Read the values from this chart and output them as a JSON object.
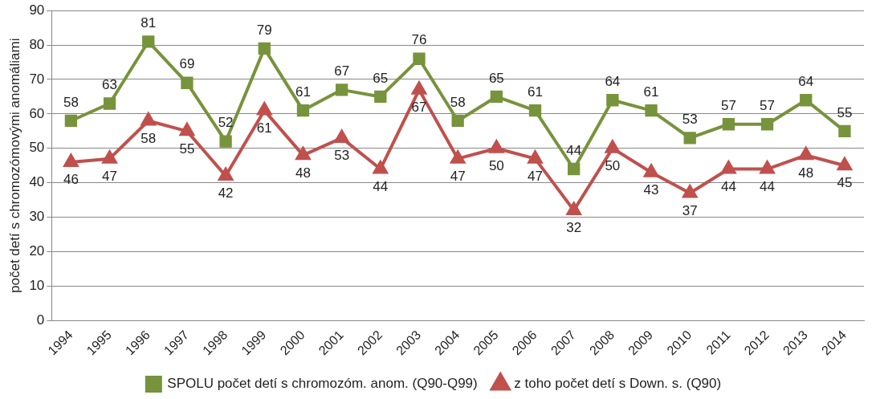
{
  "chart_data": {
    "type": "line",
    "ylabel": "počet detí s chromozómovými anomáliami",
    "categories": [
      "1994",
      "1995",
      "1996",
      "1997",
      "1998",
      "1999",
      "2000",
      "2001",
      "2002",
      "2003",
      "2004",
      "2005",
      "2006",
      "2007",
      "2008",
      "2009",
      "2010",
      "2011",
      "2012",
      "2013",
      "2014"
    ],
    "series": [
      {
        "name": "SPOLU počet detí s chromozóm. anom. (Q90-Q99)",
        "color": "#77933c",
        "marker": "square",
        "values": [
          58,
          63,
          81,
          69,
          52,
          79,
          61,
          67,
          65,
          76,
          58,
          65,
          61,
          44,
          64,
          61,
          53,
          57,
          57,
          64,
          55
        ]
      },
      {
        "name": "z toho počet detí s Down. s. (Q90)",
        "color": "#c0504d",
        "marker": "triangle",
        "values": [
          46,
          47,
          58,
          55,
          42,
          61,
          48,
          53,
          44,
          67,
          47,
          50,
          47,
          32,
          50,
          43,
          37,
          44,
          44,
          48,
          45
        ]
      }
    ],
    "ylim": [
      0,
      90
    ],
    "yticks": [
      0,
      10,
      20,
      30,
      40,
      50,
      60,
      70,
      80,
      90
    ],
    "grid": "y",
    "legend": "bottom",
    "data_labels": true,
    "line_style": "solid"
  }
}
